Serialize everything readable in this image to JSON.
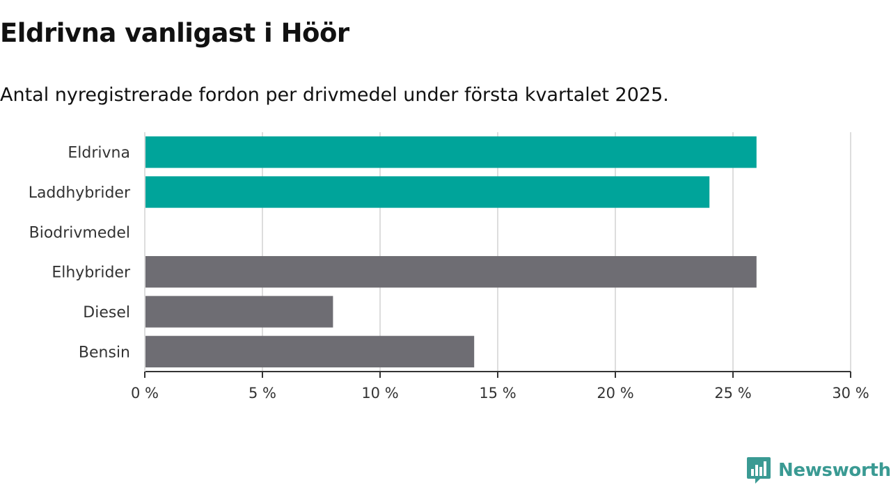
{
  "header": {
    "title": "Eldrivna vanligast i Höör",
    "subtitle": "Antal nyregistrerade fordon per drivmedel under första kvartalet 2025."
  },
  "brand": {
    "name": "Newsworthy",
    "color": "#3a9a93",
    "icon": "bar-chart-logo-icon"
  },
  "colors": {
    "highlight": "#00a49a",
    "other": "#6e6d73",
    "grid": "#dddddd",
    "axis": "#333333"
  },
  "chart_data": {
    "type": "bar",
    "orientation": "horizontal",
    "categories": [
      "Eldrivna",
      "Laddhybrider",
      "Biodrivmedel",
      "Elhybrider",
      "Diesel",
      "Bensin"
    ],
    "values": [
      26,
      24,
      0,
      26,
      8,
      14
    ],
    "highlighted": [
      true,
      true,
      true,
      false,
      false,
      false
    ],
    "xlim": [
      0,
      30
    ],
    "xticks": [
      0,
      5,
      10,
      15,
      20,
      25,
      30
    ],
    "xtick_labels": [
      "0 %",
      "5 %",
      "10 %",
      "15 %",
      "20 %",
      "25 %",
      "30 %"
    ],
    "grid": true,
    "unit": "%"
  }
}
